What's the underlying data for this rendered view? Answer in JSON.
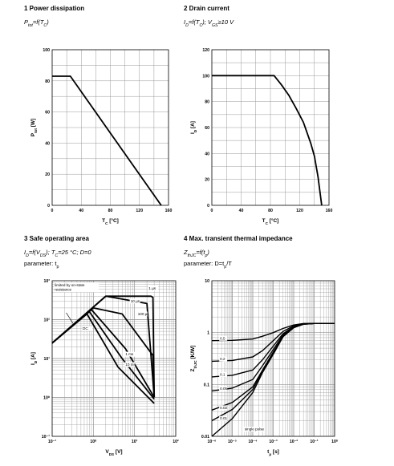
{
  "panels": [
    {
      "title": "1 Power dissipation",
      "subtitle": "Ptot=f(TC)",
      "sub_parts": [
        [
          "P",
          ""
        ],
        [
          "tot",
          "sub"
        ],
        [
          "=f(",
          ""
        ],
        [
          "T",
          ""
        ],
        [
          "C",
          "sub"
        ],
        [
          ")",
          ""
        ]
      ],
      "params": "",
      "xlabel": "TC [°C]",
      "xlabel_parts": [
        [
          "T",
          ""
        ],
        [
          "C",
          "sub"
        ],
        [
          " [°C]",
          ""
        ]
      ],
      "ylabel": "Ptot [W]",
      "ylabel_parts": [
        [
          "P",
          ""
        ],
        [
          "tot",
          "sub"
        ],
        [
          " [W]",
          ""
        ]
      ]
    },
    {
      "title": "2 Drain current",
      "subtitle": "ID=f(TC); VGS≥10 V",
      "sub_parts": [
        [
          "I",
          ""
        ],
        [
          "D",
          "sub"
        ],
        [
          "=f(",
          ""
        ],
        [
          "T",
          ""
        ],
        [
          "C",
          "sub"
        ],
        [
          "); ",
          ""
        ],
        [
          "V",
          ""
        ],
        [
          "GS",
          "sub"
        ],
        [
          "≥10 V",
          ""
        ]
      ],
      "params": "",
      "xlabel": "TC [°C]",
      "xlabel_parts": [
        [
          "T",
          ""
        ],
        [
          "C",
          "sub"
        ],
        [
          " [°C]",
          ""
        ]
      ],
      "ylabel": "ID [A]",
      "ylabel_parts": [
        [
          "I",
          ""
        ],
        [
          "D",
          "sub"
        ],
        [
          " [A]",
          ""
        ]
      ]
    },
    {
      "title": "3 Safe operating area",
      "subtitle": "ID=f(VDS); TC=25 °C; D=0",
      "sub_parts": [
        [
          "I",
          ""
        ],
        [
          "D",
          "sub"
        ],
        [
          "=f(",
          ""
        ],
        [
          "V",
          ""
        ],
        [
          "DS",
          "sub"
        ],
        [
          "); ",
          ""
        ],
        [
          "T",
          ""
        ],
        [
          "C",
          "sub"
        ],
        [
          "=25 °C; ",
          ""
        ],
        [
          "D",
          ""
        ],
        [
          "=0",
          ""
        ]
      ],
      "params": "parameter: tp",
      "params_parts": [
        [
          "parameter: ",
          ""
        ],
        [
          "t",
          ""
        ],
        [
          "p",
          "sub"
        ]
      ],
      "xlabel": "VDS [V]",
      "xlabel_parts": [
        [
          "V",
          ""
        ],
        [
          "DS",
          "sub"
        ],
        [
          " [V]",
          ""
        ]
      ],
      "ylabel": "ID [A]",
      "ylabel_parts": [
        [
          "I",
          ""
        ],
        [
          "D",
          "sub"
        ],
        [
          " [A]",
          ""
        ]
      ]
    },
    {
      "title": "4 Max. transient thermal impedance",
      "subtitle": "ZthJC=f(tp)",
      "sub_parts": [
        [
          "Z",
          ""
        ],
        [
          "thJC",
          "sub"
        ],
        [
          "=f(",
          ""
        ],
        [
          "t",
          ""
        ],
        [
          "p",
          "sub"
        ],
        [
          ")",
          ""
        ]
      ],
      "params": "parameter: D=tp/T",
      "params_parts": [
        [
          "parameter: ",
          ""
        ],
        [
          "D",
          ""
        ],
        [
          "=",
          ""
        ],
        [
          "t",
          ""
        ],
        [
          "p",
          "sub"
        ],
        [
          "/",
          ""
        ],
        [
          "T",
          ""
        ]
      ],
      "xlabel": "tp [s]",
      "xlabel_parts": [
        [
          "t",
          ""
        ],
        [
          "p",
          "sub"
        ],
        [
          " [s]",
          ""
        ]
      ],
      "ylabel": "ZthJC [K/W]",
      "ylabel_parts": [
        [
          "Z",
          ""
        ],
        [
          "thJC",
          "sub"
        ],
        [
          " [K/W]",
          ""
        ]
      ]
    }
  ],
  "chart_data": [
    {
      "type": "line",
      "title": "1 Power dissipation",
      "xlabel": "TC [°C]",
      "ylabel": "Ptot [W]",
      "xlim": [
        0,
        160
      ],
      "ylim": [
        0,
        100
      ],
      "xticks": [
        0,
        40,
        80,
        120,
        160
      ],
      "yticks": [
        0,
        20,
        40,
        60,
        80,
        100
      ],
      "grid": true,
      "series": [
        {
          "x": [
            0,
            25,
            150
          ],
          "y": [
            83,
            83,
            0
          ]
        }
      ]
    },
    {
      "type": "line",
      "title": "2 Drain current",
      "xlabel": "TC [°C]",
      "ylabel": "ID [A]",
      "xlim": [
        0,
        160
      ],
      "ylim": [
        0,
        120
      ],
      "xticks": [
        0,
        40,
        80,
        120,
        160
      ],
      "yticks": [
        0,
        20,
        40,
        60,
        80,
        100,
        120
      ],
      "grid": true,
      "series": [
        {
          "x": [
            0,
            85,
            95,
            105,
            115,
            125,
            135,
            140,
            145,
            150
          ],
          "y": [
            100,
            100,
            93,
            85,
            75,
            64,
            48,
            38,
            22,
            0
          ]
        }
      ]
    },
    {
      "type": "line",
      "title": "3 Safe operating area",
      "xlabel": "VDS [V]",
      "ylabel": "ID [A]",
      "x_scale": "log",
      "y_scale": "log",
      "xlim": [
        0.1,
        100
      ],
      "ylim": [
        0.1,
        1000
      ],
      "xticks": [
        0.1,
        1,
        10,
        100
      ],
      "xtick_labels": [
        "10⁻¹",
        "10⁰",
        "10¹",
        "10²"
      ],
      "yticks": [
        0.1,
        1,
        10,
        100,
        1000
      ],
      "ytick_labels": [
        "10⁻¹",
        "10⁰",
        "10¹",
        "10²",
        "10³"
      ],
      "grid": true,
      "annotations": [
        "limited by on-state resistance",
        "1 µs",
        "10 µs",
        "100 µs",
        "1 ms",
        "10 ms",
        "DC"
      ],
      "series": [
        {
          "name": "1 µs",
          "x": [
            0.1,
            2.0,
            25,
            28,
            28,
            30
          ],
          "y": [
            25,
            400,
            400,
            370,
            370,
            1
          ]
        },
        {
          "name": "10 µs",
          "x": [
            0.1,
            2.0,
            20,
            30
          ],
          "y": [
            25,
            400,
            260,
            1
          ]
        },
        {
          "name": "100 µs",
          "x": [
            0.1,
            1.0,
            5.0,
            28,
            30
          ],
          "y": [
            25,
            200,
            140,
            12,
            1
          ]
        },
        {
          "name": "1 ms",
          "x": [
            0.1,
            0.9,
            6.0,
            30
          ],
          "y": [
            25,
            180,
            18,
            1
          ]
        },
        {
          "name": "10 ms",
          "x": [
            0.1,
            0.8,
            5.0,
            30
          ],
          "y": [
            25,
            160,
            10,
            0.9
          ]
        },
        {
          "name": "DC",
          "x": [
            0.1,
            0.7,
            4.0,
            30
          ],
          "y": [
            25,
            140,
            6,
            0.7
          ]
        }
      ]
    },
    {
      "type": "line",
      "title": "4 Max. transient thermal impedance",
      "xlabel": "tp [s]",
      "ylabel": "ZthJC [K/W]",
      "x_scale": "log",
      "y_scale": "log",
      "xlim": [
        1e-06,
        1
      ],
      "ylim": [
        0.01,
        10
      ],
      "xticks": [
        1e-06,
        1e-05,
        0.0001,
        0.001,
        0.01,
        0.1,
        1
      ],
      "xtick_labels": [
        "10⁻⁶",
        "10⁻⁵",
        "10⁻⁴",
        "10⁻³",
        "10⁻²",
        "10⁻¹",
        "10⁰"
      ],
      "yticks": [
        0.01,
        0.1,
        1,
        10
      ],
      "ytick_labels": [
        "0.01",
        "0.1",
        "1",
        "10"
      ],
      "grid": true,
      "series": [
        {
          "name": "0.5",
          "x": [
            1e-06,
            1e-05,
            0.0001,
            0.0003,
            0.001,
            0.003,
            0.01,
            0.03,
            0.1,
            1
          ],
          "y": [
            0.7,
            0.71,
            0.75,
            0.85,
            1.0,
            1.2,
            1.4,
            1.5,
            1.5,
            1.5
          ]
        },
        {
          "name": "0.2",
          "x": [
            1e-06,
            1e-05,
            0.0001,
            0.0003,
            0.001,
            0.003,
            0.01,
            0.03,
            0.1,
            1
          ],
          "y": [
            0.28,
            0.29,
            0.34,
            0.45,
            0.7,
            1.05,
            1.35,
            1.48,
            1.5,
            1.5
          ]
        },
        {
          "name": "0.1",
          "x": [
            1e-06,
            1e-05,
            0.0001,
            0.0003,
            0.001,
            0.003,
            0.01,
            0.03,
            0.1,
            1
          ],
          "y": [
            0.14,
            0.15,
            0.19,
            0.3,
            0.55,
            0.95,
            1.3,
            1.47,
            1.5,
            1.5
          ]
        },
        {
          "name": "0.05",
          "x": [
            1e-06,
            1e-05,
            0.0001,
            0.0003,
            0.001,
            0.003,
            0.01,
            0.03,
            0.1,
            1
          ],
          "y": [
            0.075,
            0.085,
            0.125,
            0.23,
            0.47,
            0.9,
            1.28,
            1.46,
            1.5,
            1.5
          ]
        },
        {
          "name": "0.02",
          "x": [
            1e-06,
            1e-05,
            0.0001,
            0.0003,
            0.001,
            0.003,
            0.01,
            0.03,
            0.1,
            1
          ],
          "y": [
            0.032,
            0.045,
            0.09,
            0.19,
            0.42,
            0.85,
            1.25,
            1.45,
            1.5,
            1.5
          ]
        },
        {
          "name": "0.01",
          "x": [
            1e-06,
            1e-05,
            0.0001,
            0.0003,
            0.001,
            0.003,
            0.01,
            0.03,
            0.1,
            1
          ],
          "y": [
            0.02,
            0.033,
            0.08,
            0.18,
            0.4,
            0.84,
            1.25,
            1.45,
            1.5,
            1.5
          ]
        },
        {
          "name": "single pulse",
          "x": [
            1e-06,
            1e-05,
            0.0001,
            0.0003,
            0.001,
            0.003,
            0.01,
            0.03,
            0.1,
            1
          ],
          "y": [
            0.007,
            0.022,
            0.07,
            0.17,
            0.38,
            0.83,
            1.24,
            1.45,
            1.5,
            1.5
          ]
        }
      ]
    }
  ]
}
